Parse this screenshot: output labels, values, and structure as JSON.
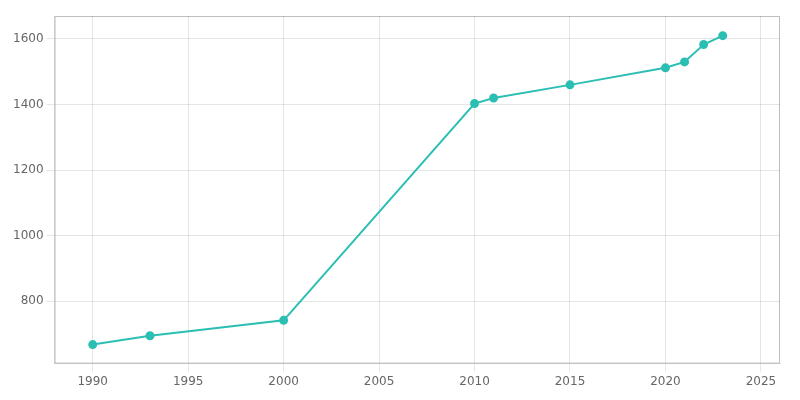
{
  "chart_data": {
    "type": "line",
    "x": [
      1990,
      1993,
      2000,
      2010,
      2011,
      2015,
      2020,
      2021,
      2022,
      2023
    ],
    "values": [
      668,
      695,
      742,
      1403,
      1420,
      1460,
      1512,
      1530,
      1583,
      1610
    ],
    "color": "#2bbfb3",
    "marker": "circle",
    "xlim": [
      1988,
      2026
    ],
    "ylim": [
      610,
      1670
    ],
    "xticks": [
      1990,
      1995,
      2000,
      2005,
      2010,
      2015,
      2020,
      2025
    ],
    "yticks": [
      800,
      1000,
      1200,
      1400,
      1600
    ],
    "grid": true
  }
}
